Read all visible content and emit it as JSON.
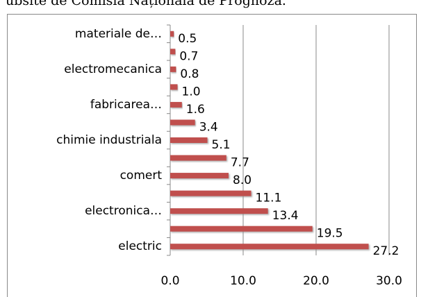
{
  "caption": "ubsite de Comisia Națională de Prognoză.",
  "chart_data": {
    "type": "hbar",
    "categories": [
      "materiale de…",
      null,
      "electromecanica",
      null,
      "fabricarea…",
      null,
      "chimie industriala",
      null,
      "comert",
      null,
      "electronica…",
      null,
      "electric"
    ],
    "values": [
      0.5,
      0.7,
      0.8,
      1.0,
      1.6,
      3.4,
      5.1,
      7.7,
      8.0,
      11.1,
      13.4,
      19.5,
      27.2
    ],
    "value_labels": [
      "0.5",
      "0.7",
      "0.8",
      "1.0",
      "1.6",
      "3.4",
      "5.1",
      "7.7",
      "8.0",
      "11.1",
      "13.4",
      "19.5",
      "27.2"
    ],
    "color": "#c0504d",
    "xlim": [
      0,
      30
    ],
    "xticks": [
      {
        "value": 0,
        "label": "0.0"
      },
      {
        "value": 10,
        "label": "10.0"
      },
      {
        "value": 20,
        "label": "20.0"
      },
      {
        "value": 30,
        "label": "30.0"
      }
    ],
    "grid": true
  }
}
